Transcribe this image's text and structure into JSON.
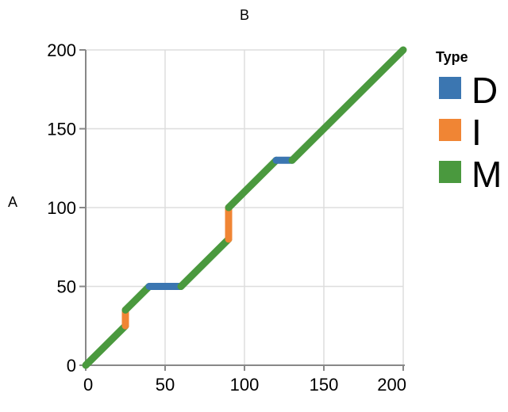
{
  "page": {
    "background": "#ffffff"
  },
  "chart_data": {
    "type": "line",
    "title": "B",
    "xlabel": "",
    "ylabel": "A",
    "xlim": [
      0,
      200
    ],
    "ylim": [
      0,
      200
    ],
    "x_ticks": [
      0,
      50,
      100,
      150,
      200
    ],
    "y_ticks": [
      0,
      50,
      100,
      150,
      200
    ],
    "grid": true,
    "axis_color": "#888888",
    "grid_color": "#dddddd",
    "text_color": "#000000",
    "line_width": 9,
    "legend": {
      "title": "Type",
      "position": "right",
      "entries": [
        {
          "label": "D",
          "color": "#3b76b1"
        },
        {
          "label": "I",
          "color": "#f08534"
        },
        {
          "label": "M",
          "color": "#4a993e"
        }
      ]
    },
    "segments": [
      {
        "type": "M",
        "x1": 0,
        "y1": 0,
        "x2": 25,
        "y2": 25
      },
      {
        "type": "I",
        "x1": 25,
        "y1": 25,
        "x2": 25,
        "y2": 35
      },
      {
        "type": "M",
        "x1": 25,
        "y1": 35,
        "x2": 40,
        "y2": 50
      },
      {
        "type": "D",
        "x1": 40,
        "y1": 50,
        "x2": 60,
        "y2": 50
      },
      {
        "type": "M",
        "x1": 60,
        "y1": 50,
        "x2": 90,
        "y2": 80
      },
      {
        "type": "I",
        "x1": 90,
        "y1": 80,
        "x2": 90,
        "y2": 100
      },
      {
        "type": "M",
        "x1": 90,
        "y1": 100,
        "x2": 120,
        "y2": 130
      },
      {
        "type": "D",
        "x1": 120,
        "y1": 130,
        "x2": 130,
        "y2": 130
      },
      {
        "type": "M",
        "x1": 130,
        "y1": 130,
        "x2": 200,
        "y2": 200
      }
    ]
  }
}
